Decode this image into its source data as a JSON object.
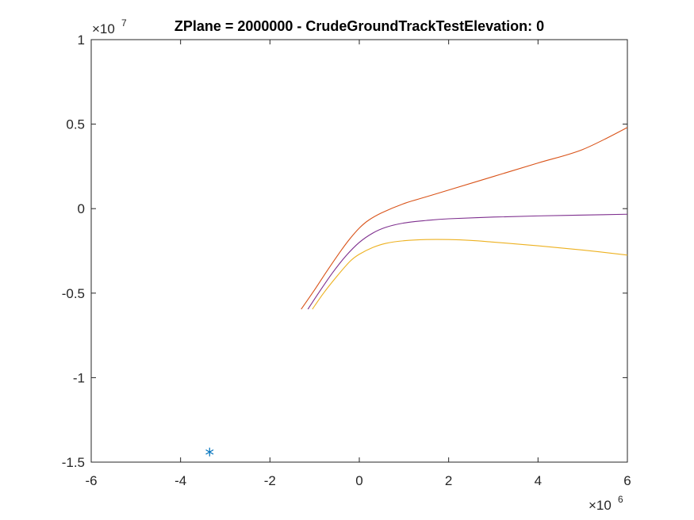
{
  "chart_data": {
    "type": "line",
    "title": "ZPlane = 2000000 - CrudeGroundTrackTestElevation: 0",
    "xlabel": "",
    "ylabel": "",
    "xlim": [
      -6,
      6
    ],
    "ylim": [
      -1.5,
      1
    ],
    "x_multiplier": {
      "base": "×10",
      "exponent": "6"
    },
    "y_multiplier": {
      "base": "×10",
      "exponent": "7"
    },
    "x_ticks": [
      -6,
      -4,
      -2,
      0,
      2,
      4,
      6
    ],
    "y_ticks": [
      -1.5,
      -1,
      -0.5,
      0,
      0.5,
      1
    ],
    "x_tick_labels": [
      "-6",
      "-4",
      "-2",
      "0",
      "2",
      "4",
      "6"
    ],
    "y_tick_labels": [
      "-1.5",
      "-1",
      "-0.5",
      "0",
      "0.5",
      "1"
    ],
    "grid": false,
    "box": true,
    "series": [
      {
        "color": "#D95319",
        "marker": "none",
        "x": [
          -1.3,
          -1.0,
          -0.7,
          -0.4,
          -0.2,
          0.0,
          0.2,
          0.5,
          1.0,
          1.5,
          2.0,
          3.0,
          4.0,
          5.0,
          6.0
        ],
        "y": [
          -0.595,
          -0.48,
          -0.36,
          -0.245,
          -0.175,
          -0.115,
          -0.07,
          -0.025,
          0.03,
          0.07,
          0.11,
          0.19,
          0.27,
          0.35,
          0.48
        ]
      },
      {
        "color": "#7E2F8E",
        "marker": "none",
        "x": [
          -1.15,
          -0.9,
          -0.6,
          -0.3,
          0.0,
          0.3,
          0.6,
          1.0,
          1.5,
          2.0,
          3.0,
          4.0,
          5.0,
          6.0
        ],
        "y": [
          -0.595,
          -0.495,
          -0.38,
          -0.28,
          -0.2,
          -0.145,
          -0.11,
          -0.085,
          -0.07,
          -0.06,
          -0.05,
          -0.043,
          -0.038,
          -0.033
        ]
      },
      {
        "color": "#EDB120",
        "marker": "none",
        "x": [
          -1.05,
          -0.8,
          -0.5,
          -0.2,
          0.0,
          0.3,
          0.6,
          1.0,
          1.5,
          2.0,
          2.5,
          3.0,
          4.0,
          5.0,
          6.0
        ],
        "y": [
          -0.595,
          -0.5,
          -0.4,
          -0.31,
          -0.27,
          -0.23,
          -0.205,
          -0.19,
          -0.183,
          -0.183,
          -0.188,
          -0.198,
          -0.22,
          -0.245,
          -0.275
        ]
      },
      {
        "color": "#0072BD",
        "marker": "asterisk",
        "x": [
          -3.35
        ],
        "y": [
          -1.44
        ]
      }
    ]
  }
}
